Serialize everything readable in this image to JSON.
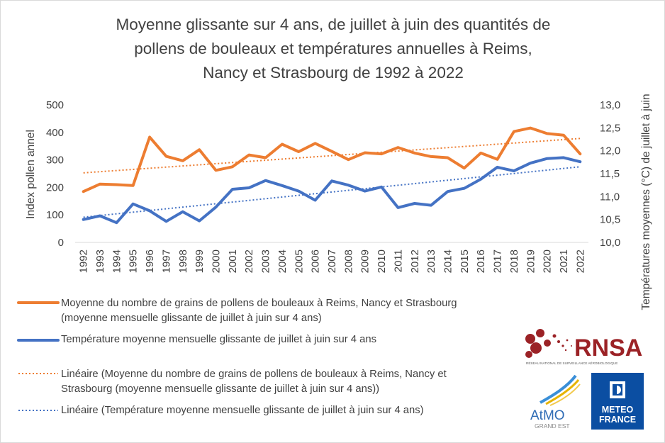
{
  "title_lines": [
    "Moyenne glissante sur 4 ans, de juillet à juin des quantités de",
    "pollens de bouleaux et températures annuelles à Reims,",
    "Nancy et Strasbourg de 1992 à 2022"
  ],
  "chart_data": {
    "type": "line",
    "title": "Moyenne glissante sur 4 ans, de juillet à juin des quantités de pollens de bouleaux et températures annuelles à Reims, Nancy et Strasbourg de 1992 à 2022",
    "ylabel": "Index pollen annel",
    "y2label": "Températures moyennes (°C) de juillet à juin",
    "ylim": [
      0,
      500
    ],
    "y2lim": [
      10.0,
      13.0
    ],
    "yticks": [
      "0",
      "100",
      "200",
      "300",
      "400",
      "500"
    ],
    "y2ticks": [
      "10,0",
      "10,5",
      "11,0",
      "11,5",
      "12,0",
      "12,5",
      "13,0"
    ],
    "grid": false,
    "legend_position": "bottom-left",
    "categories": [
      "1992",
      "1993",
      "1994",
      "1995",
      "1996",
      "1997",
      "1998",
      "1999",
      "2000",
      "2001",
      "2002",
      "2003",
      "2004",
      "2005",
      "2006",
      "2007",
      "2008",
      "2009",
      "2010",
      "2011",
      "2012",
      "2013",
      "2014",
      "2015",
      "2016",
      "2017",
      "2018",
      "2019",
      "2020",
      "2021",
      "2022"
    ],
    "series": [
      {
        "name": "Moyenne du nombre de grains de pollens de bouleaux à Reims, Nancy et Strasbourg (moyenne mensuelle glissante de juillet à juin sur 4 ans)",
        "axis": "left",
        "color": "#ED7D31",
        "values": [
          185,
          212,
          210,
          207,
          383,
          313,
          297,
          337,
          262,
          275,
          318,
          308,
          357,
          330,
          360,
          331,
          301,
          326,
          322,
          345,
          325,
          312,
          308,
          270,
          325,
          302,
          403,
          416,
          396,
          390,
          322
        ]
      },
      {
        "name": "Température moyenne mensuelle glissante de juillet à juin sur 4 ans",
        "axis": "right",
        "color": "#4472C4",
        "values": [
          10.5,
          10.58,
          10.43,
          10.84,
          10.69,
          10.46,
          10.67,
          10.47,
          10.77,
          11.16,
          11.19,
          11.35,
          11.24,
          11.12,
          10.92,
          11.34,
          11.25,
          11.12,
          11.21,
          10.76,
          10.85,
          10.81,
          11.11,
          11.18,
          11.38,
          11.64,
          11.56,
          11.73,
          11.83,
          11.85,
          11.76
        ]
      }
    ],
    "trendlines": [
      {
        "name": "Linéaire (Moyenne du nombre de grains de pollens de bouleaux à Reims, Nancy et Strasbourg (moyenne mensuelle glissante de juillet à juin sur 4 ans))",
        "axis": "left",
        "color": "#ED7D31",
        "start": 253,
        "end": 378
      },
      {
        "name": "Linéaire (Température moyenne mensuelle glissante de juillet à juin sur 4 ans)",
        "axis": "right",
        "color": "#4472C4",
        "start": 10.55,
        "end": 11.65
      }
    ]
  },
  "legend": [
    {
      "lines": [
        "Moyenne du nombre de grains de pollens de bouleaux à Reims, Nancy et Strasbourg",
        "(moyenne mensuelle glissante de juillet à juin sur 4 ans)"
      ],
      "color": "#ED7D31",
      "style": "solid"
    },
    {
      "lines": [
        "Température moyenne mensuelle glissante de juillet à juin sur 4 ans"
      ],
      "color": "#4472C4",
      "style": "solid"
    },
    {
      "lines": [
        "Linéaire (Moyenne du nombre de grains de pollens de bouleaux à Reims, Nancy et",
        "Strasbourg (moyenne mensuelle glissante de juillet à juin sur 4 ans))"
      ],
      "color": "#ED7D31",
      "style": "dotted"
    },
    {
      "lines": [
        "Linéaire (Température moyenne mensuelle glissante de juillet à juin sur 4 ans)"
      ],
      "color": "#4472C4",
      "style": "dotted"
    }
  ],
  "logos": {
    "rnsa": {
      "text": "RNSA",
      "subtitle": "RÉSEAU NATIONAL DE SURVEILLANCE AÉROBIOLOGIQUE",
      "color": "#9b2226"
    },
    "atmo": {
      "text_a": "AtMO",
      "text_b": "GRAND EST",
      "color": "#2e6bb5"
    },
    "meteo_france": {
      "line1": "METEO",
      "line2": "FRANCE",
      "color": "#0b4ea2"
    }
  }
}
